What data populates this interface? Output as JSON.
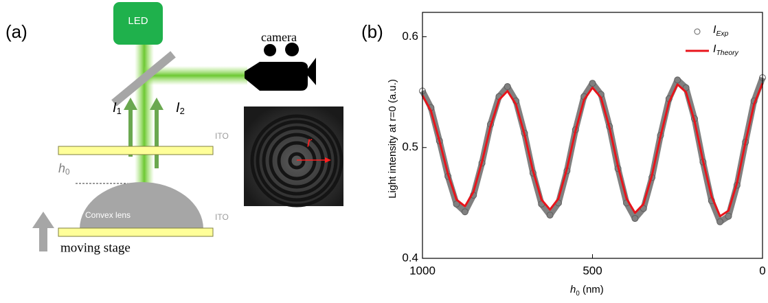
{
  "panel_a": {
    "label": "(a)",
    "led": "LED",
    "camera": "camera",
    "i1": "I1",
    "i2": "I2",
    "ito_top": "ITO",
    "ito_bottom": "ITO",
    "h0": "h0",
    "lens": "Convex lens",
    "stage": "moving stage",
    "r": "r"
  },
  "panel_b": {
    "label": "(b)"
  },
  "chart_data": {
    "type": "line",
    "x_label": "h0 (nm)",
    "y_label": "Light intensity at r=0 (a.u.)",
    "x": [
      1000,
      975,
      950,
      925,
      900,
      875,
      850,
      825,
      800,
      775,
      750,
      725,
      700,
      675,
      650,
      625,
      600,
      575,
      550,
      525,
      500,
      475,
      450,
      425,
      400,
      375,
      350,
      325,
      300,
      275,
      250,
      225,
      200,
      175,
      150,
      125,
      100,
      75,
      50,
      25,
      0
    ],
    "series": [
      {
        "name": "IExp",
        "color": "#808080",
        "marker": "circle",
        "values": [
          0.551,
          0.536,
          0.506,
          0.474,
          0.449,
          0.442,
          0.457,
          0.486,
          0.521,
          0.546,
          0.555,
          0.542,
          0.513,
          0.477,
          0.449,
          0.439,
          0.45,
          0.479,
          0.516,
          0.546,
          0.558,
          0.548,
          0.519,
          0.481,
          0.45,
          0.436,
          0.445,
          0.473,
          0.511,
          0.544,
          0.561,
          0.554,
          0.526,
          0.487,
          0.452,
          0.433,
          0.438,
          0.466,
          0.505,
          0.542,
          0.563
        ]
      },
      {
        "name": "ITheory",
        "color": "#e8141b",
        "marker": "line",
        "values": [
          0.547,
          0.533,
          0.506,
          0.476,
          0.453,
          0.447,
          0.46,
          0.487,
          0.519,
          0.543,
          0.551,
          0.539,
          0.512,
          0.479,
          0.453,
          0.444,
          0.454,
          0.481,
          0.515,
          0.543,
          0.554,
          0.545,
          0.518,
          0.483,
          0.454,
          0.441,
          0.449,
          0.475,
          0.51,
          0.541,
          0.557,
          0.55,
          0.524,
          0.488,
          0.456,
          0.438,
          0.443,
          0.468,
          0.505,
          0.539,
          0.558
        ]
      }
    ],
    "xlim": [
      1000,
      0
    ],
    "xticks": [
      1000,
      500,
      0
    ],
    "ylim": [
      0.4,
      0.622
    ],
    "yticks": [
      0.4,
      0.5,
      0.6
    ],
    "grid": false,
    "legend": "top-right"
  }
}
